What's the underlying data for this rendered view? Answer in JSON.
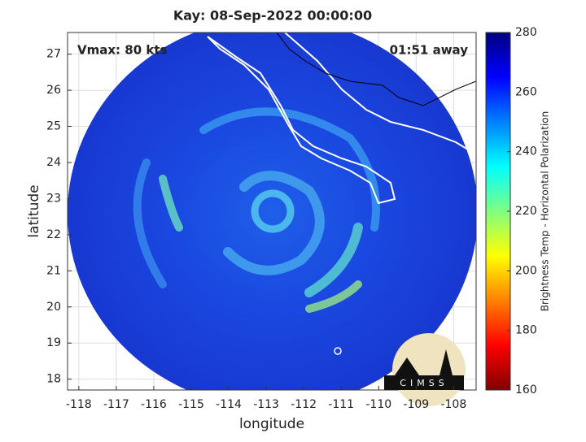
{
  "chart_data": {
    "type": "map",
    "title": "Kay: 08-Sep-2022 00:00:00",
    "xlabel": "longitude",
    "ylabel": "latitude",
    "xlim": [
      -118.3,
      -107.4
    ],
    "ylim": [
      17.7,
      27.6
    ],
    "xticks": [
      -118,
      -117,
      -116,
      -115,
      -114,
      -113,
      -112,
      -111,
      -110,
      -109,
      -108
    ],
    "yticks": [
      18,
      19,
      20,
      21,
      22,
      23,
      24,
      25,
      26,
      27
    ],
    "grid": true,
    "annotations": {
      "left": "Vmax: 80 kts",
      "right": "01:51 away"
    },
    "logo": "CIMSS",
    "colorbar": {
      "label": "Brightness Temp - Horizontal Polarization",
      "lim": [
        160,
        280
      ],
      "ticks": [
        160,
        180,
        200,
        220,
        240,
        260,
        280
      ],
      "colors": [
        "#800000",
        "#ff0000",
        "#ff8000",
        "#ffff00",
        "#80ff80",
        "#00ffff",
        "#0080ff",
        "#0000ff",
        "#000080"
      ]
    }
  }
}
